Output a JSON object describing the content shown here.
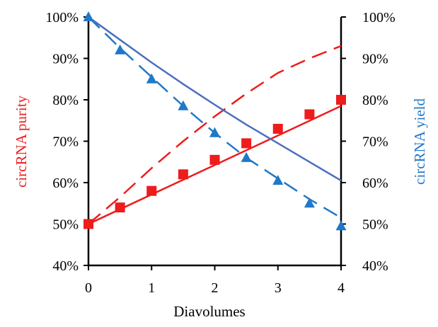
{
  "chart_data": {
    "type": "scatter",
    "title": "",
    "xlabel": "Diavolumes",
    "ylabel": "circRNA purity",
    "y2label": "circRNA yield",
    "xlim": [
      0,
      4
    ],
    "ylim": [
      40,
      100
    ],
    "y2lim": [
      40,
      100
    ],
    "x_ticks": [
      0,
      1,
      2,
      3,
      4
    ],
    "y_ticks": [
      40,
      50,
      60,
      70,
      80,
      90,
      100
    ],
    "y_tick_labels": [
      "40%",
      "50%",
      "60%",
      "70%",
      "80%",
      "90%",
      "100%"
    ],
    "y2_ticks": [
      40,
      50,
      60,
      70,
      80,
      90,
      100
    ],
    "y2_tick_labels": [
      "40%",
      "50%",
      "60%",
      "70%",
      "80%",
      "90%",
      "100%"
    ],
    "colors": {
      "purity": "#ee1c1c",
      "yield": "#1f78c8",
      "yield_model": "#4a6fbf"
    },
    "series": [
      {
        "name": "purity_measured",
        "axis": "left",
        "kind": "markers",
        "marker": "square",
        "color": "#ee1c1c",
        "x": [
          0,
          0.5,
          1,
          1.5,
          2,
          2.5,
          3,
          3.5,
          4
        ],
        "y": [
          50,
          54,
          58,
          62,
          65.5,
          69.5,
          73,
          76.5,
          80
        ]
      },
      {
        "name": "purity_fit",
        "axis": "left",
        "kind": "line",
        "dash": "solid",
        "color": "#ee1c1c",
        "x": [
          0,
          4
        ],
        "y": [
          50,
          78.5
        ]
      },
      {
        "name": "purity_model",
        "axis": "left",
        "kind": "line",
        "dash": "dashed",
        "color": "#ee1c1c",
        "x": [
          0,
          0.5,
          1,
          1.5,
          2,
          2.5,
          3,
          3.5,
          4
        ],
        "y": [
          50,
          56.5,
          63.5,
          70,
          76,
          81.5,
          86.5,
          90,
          93
        ]
      },
      {
        "name": "yield_measured",
        "axis": "right",
        "kind": "markers",
        "marker": "triangle",
        "color": "#1f78c8",
        "x": [
          0,
          0.5,
          1,
          1.5,
          2,
          2.5,
          3,
          3.5,
          4
        ],
        "y": [
          100,
          92,
          85,
          78.5,
          72,
          66,
          60.5,
          55,
          49.5
        ]
      },
      {
        "name": "yield_fit",
        "axis": "right",
        "kind": "line",
        "dash": "dashed",
        "color": "#1f78c8",
        "x": [
          0,
          0.5,
          1,
          1.5,
          2,
          2.5,
          3,
          3.5,
          4
        ],
        "y": [
          100,
          92.5,
          85.5,
          78.5,
          72,
          66,
          61,
          56,
          51.5
        ]
      },
      {
        "name": "yield_model",
        "axis": "right",
        "kind": "line",
        "dash": "solid",
        "color": "#4a6fbf",
        "x": [
          0,
          0.5,
          1,
          1.5,
          2,
          2.5,
          3,
          3.5,
          4
        ],
        "y": [
          100,
          94.5,
          89,
          83.8,
          78.8,
          74,
          69.5,
          65,
          60.5
        ]
      }
    ]
  }
}
